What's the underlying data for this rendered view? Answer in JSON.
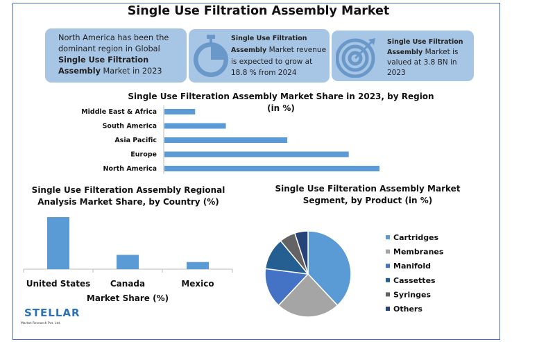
{
  "title": "Single Use Filtration Assembly Market",
  "cards": [
    {
      "pre": "North America has been the dominant region in Global ",
      "bold": "Single Use Filtration Assembly",
      "post": " Market in 2023",
      "icon": "globe-icon"
    },
    {
      "bold": "Single Use Filtration Assembly",
      "post": " Market revenue is expected to grow at 18.8 % from 2024",
      "icon": "stopwatch-icon"
    },
    {
      "bold": "Single Use Filtration Assembly",
      "post": " Market is valued at 3.8 BN in 2023",
      "icon": "target-icon"
    }
  ],
  "colors": {
    "accent": "#5b9bd5",
    "card": "#a7c5e5",
    "frame": "#3f6fae"
  },
  "chart_data": [
    {
      "type": "bar",
      "orientation": "horizontal",
      "title": "Single Use Filteration Assembly Market Share in 2023, by Region\n(in %)",
      "categories": [
        "Middle East & Africa",
        "South America",
        "Asia Pacific",
        "Europe",
        "North America"
      ],
      "values": [
        5,
        10,
        20,
        30,
        35
      ],
      "color": "#5b9bd5"
    },
    {
      "type": "bar",
      "title": "Single Use Filteration Assembly Regional Analysis Market Share, by Country (%)",
      "categories": [
        "United States",
        "Canada",
        "Mexico"
      ],
      "values": [
        80,
        22,
        11
      ],
      "xlabel": "Market Share (%)",
      "color": "#5b9bd5"
    },
    {
      "type": "pie",
      "title": "Single Use Filteration Assembly Market Segment, by Product (in %)",
      "labels": [
        "Cartridges",
        "Membranes",
        "Manifold",
        "Cassettes",
        "Syringes",
        "Others"
      ],
      "values": [
        38,
        24,
        15,
        12,
        6,
        5
      ],
      "colors": [
        "#5b9bd5",
        "#a5a5a5",
        "#4472c4",
        "#255e91",
        "#636363",
        "#264478"
      ],
      "legend": "right"
    }
  ],
  "logo": {
    "name": "STELLAR",
    "tagline": "Market Research Pvt. Ltd."
  }
}
